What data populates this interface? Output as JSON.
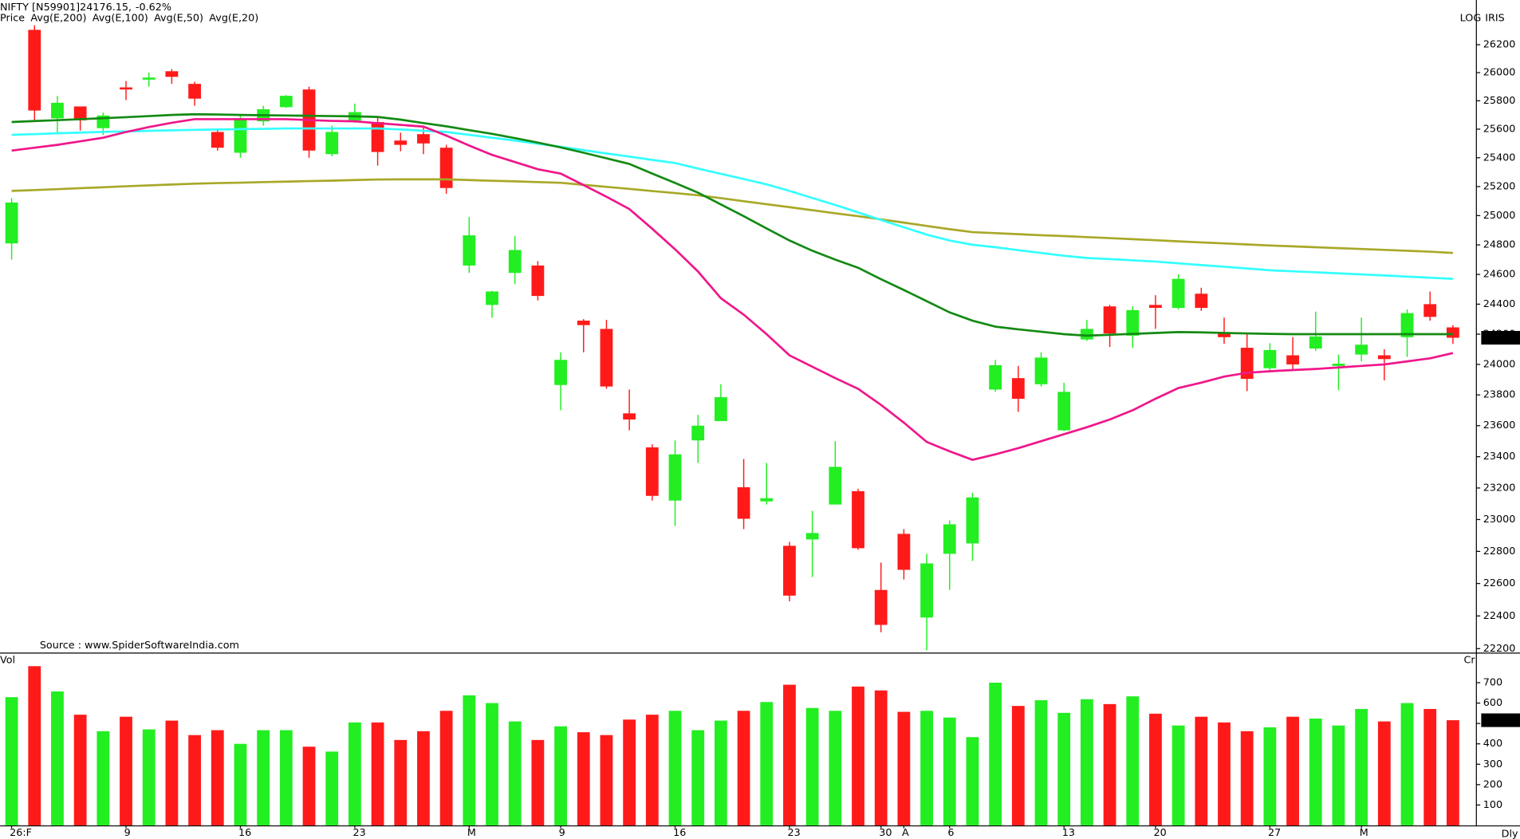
{
  "chart_data": [
    {
      "type": "candlestick",
      "title": "NIFTY [N59901]24176.15,",
      "change": "-0.62%",
      "change_color": "#ff0000",
      "scale_labels": [
        "LOG",
        "IRIS"
      ],
      "source": "Source : www.SpiderSoftwareIndia.com",
      "log_scale": true,
      "name": "Price",
      "name_color": "#22cc22",
      "up_color": "#22ee22",
      "down_color": "#ff1a1a",
      "categories": [
        "26:F",
        null,
        null,
        null,
        null,
        "9",
        null,
        null,
        null,
        null,
        "16",
        null,
        null,
        null,
        null,
        "23",
        null,
        null,
        null,
        null,
        "M",
        null,
        null,
        null,
        "9",
        null,
        null,
        null,
        null,
        "16",
        null,
        null,
        null,
        null,
        "23",
        null,
        null,
        null,
        "30",
        "A",
        null,
        "6",
        null,
        null,
        null,
        null,
        "13",
        null,
        null,
        null,
        "20",
        null,
        null,
        null,
        null,
        "27",
        null,
        null,
        null,
        "M",
        null,
        null,
        null,
        null
      ],
      "open": [
        24810,
        26307,
        25676,
        25760,
        25607,
        25895,
        25950,
        26010,
        25920,
        25580,
        25435,
        25655,
        25755,
        25880,
        25425,
        25660,
        25650,
        25520,
        25565,
        25470,
        24660,
        24395,
        24610,
        24660,
        23865,
        24290,
        24235,
        23680,
        23460,
        23120,
        23505,
        23630,
        23205,
        23115,
        22835,
        22875,
        23095,
        23180,
        22560,
        22910,
        22390,
        22785,
        22850,
        23835,
        23910,
        23870,
        23570,
        24165,
        24385,
        24190,
        24395,
        24375,
        24470,
        24210,
        24110,
        23975,
        24060,
        24105,
        23990,
        24065,
        24060,
        24180,
        24400,
        24245
      ],
      "high": [
        25120,
        26340,
        25834,
        25760,
        25717,
        25940,
        26000,
        26025,
        25935,
        25595,
        25700,
        25765,
        25840,
        25900,
        25625,
        25780,
        25685,
        25575,
        25625,
        25490,
        24990,
        24490,
        24860,
        24690,
        24080,
        24300,
        24295,
        23835,
        23480,
        23505,
        23670,
        23870,
        23385,
        23360,
        22860,
        23055,
        23500,
        23195,
        22730,
        22940,
        22785,
        22995,
        23170,
        24030,
        23990,
        24080,
        23880,
        24295,
        24395,
        24385,
        24460,
        24600,
        24510,
        24310,
        24200,
        24140,
        24180,
        24350,
        24065,
        24310,
        24100,
        24365,
        24485,
        24260
      ],
      "low": [
        24700,
        25662,
        25573,
        25590,
        25560,
        25805,
        25900,
        25920,
        25765,
        25450,
        25400,
        25625,
        25750,
        25400,
        25410,
        25645,
        25345,
        25445,
        25425,
        25150,
        24610,
        24310,
        24535,
        24425,
        23700,
        24080,
        23840,
        23570,
        23120,
        22960,
        23360,
        23630,
        22940,
        23095,
        22490,
        22640,
        23095,
        22810,
        22300,
        22625,
        22190,
        22560,
        22740,
        23820,
        23690,
        23855,
        23565,
        24155,
        24115,
        24110,
        24235,
        24365,
        24355,
        24135,
        23825,
        23950,
        23960,
        24090,
        23830,
        24020,
        23895,
        24050,
        24290,
        24135
      ],
      "close": [
        25090,
        25731,
        25786,
        25662,
        25696,
        25880,
        25965,
        25970,
        25815,
        25470,
        25676,
        25740,
        25835,
        25450,
        25580,
        25720,
        25440,
        25490,
        25500,
        25190,
        24865,
        24485,
        24765,
        24455,
        24030,
        24260,
        23855,
        23640,
        23150,
        23415,
        23600,
        23785,
        23005,
        23135,
        22525,
        22915,
        23335,
        22820,
        22345,
        22685,
        22725,
        22970,
        23140,
        23995,
        23775,
        24045,
        23820,
        24235,
        24205,
        24360,
        24375,
        24570,
        24375,
        24180,
        23905,
        24095,
        24000,
        24185,
        24005,
        24130,
        24035,
        24340,
        24315,
        24176.15
      ],
      "series": [
        {
          "name": "Avg(E,200)",
          "color": "#a8a828",
          "values": [
            25170,
            25176,
            25182,
            25189,
            25195,
            25202,
            25208,
            25214,
            25220,
            25224,
            25227,
            25231,
            25234,
            25238,
            25241,
            25245,
            25249,
            25250,
            25250,
            25250,
            25245,
            25240,
            25236,
            25231,
            25226,
            25212,
            25198,
            25184,
            25169,
            25155,
            25140,
            25120,
            25099,
            25078,
            25058,
            25037,
            25016,
            24996,
            24974,
            24952,
            24929,
            24907,
            24887,
            24880,
            24873,
            24866,
            24860,
            24853,
            24846,
            24839,
            24832,
            24824,
            24817,
            24810,
            24803,
            24796,
            24790,
            24784,
            24778,
            24772,
            24766,
            24760,
            24754,
            24745
          ]
        },
        {
          "name": "Avg(E,100)",
          "color": "#33ffff",
          "values": [
            25560,
            25565,
            25571,
            25576,
            25581,
            25584,
            25588,
            25592,
            25595,
            25598,
            25600,
            25602,
            25605,
            25605,
            25605,
            25605,
            25605,
            25598,
            25589,
            25580,
            25560,
            25540,
            25520,
            25498,
            25476,
            25453,
            25430,
            25408,
            25385,
            25363,
            25325,
            25288,
            25252,
            25215,
            25170,
            25121,
            25073,
            25022,
            24970,
            24920,
            24870,
            24830,
            24801,
            24784,
            24764,
            24745,
            24726,
            24711,
            24704,
            24695,
            24687,
            24675,
            24663,
            24652,
            24640,
            24628,
            24621,
            24614,
            24607,
            24600,
            24593,
            24585,
            24578,
            24570
          ]
        },
        {
          "name": "Avg(E,50)",
          "color": "#138a13",
          "values": [
            25650,
            25657,
            25663,
            25670,
            25677,
            25684,
            25692,
            25700,
            25705,
            25703,
            25700,
            25698,
            25696,
            25694,
            25692,
            25690,
            25686,
            25667,
            25643,
            25620,
            25593,
            25567,
            25537,
            25506,
            25472,
            25435,
            25396,
            25357,
            25290,
            25225,
            25158,
            25077,
            24996,
            24912,
            24830,
            24760,
            24700,
            24645,
            24568,
            24495,
            24420,
            24345,
            24290,
            24250,
            24232,
            24216,
            24200,
            24190,
            24196,
            24202,
            24208,
            24214,
            24212,
            24208,
            24205,
            24202,
            24200,
            24200,
            24200,
            24200,
            24200,
            24200,
            24200,
            24200
          ]
        },
        {
          "name": "Avg(E,20)",
          "color": "#f0168a",
          "values": [
            25450,
            25470,
            25490,
            25515,
            25540,
            25580,
            25615,
            25645,
            25670,
            25670,
            25670,
            25670,
            25670,
            25664,
            25658,
            25655,
            25642,
            25630,
            25618,
            25555,
            25485,
            25420,
            25370,
            25320,
            25290,
            25210,
            25130,
            25045,
            24910,
            24770,
            24620,
            24440,
            24330,
            24200,
            24060,
            23985,
            23910,
            23840,
            23735,
            23620,
            23495,
            23435,
            23380,
            23415,
            23455,
            23500,
            23545,
            23590,
            23640,
            23700,
            23775,
            23845,
            23880,
            23920,
            23945,
            23955,
            23963,
            23970,
            23980,
            23990,
            24000,
            24020,
            24040,
            24075
          ]
        }
      ],
      "ylim": [
        22176,
        26495
      ],
      "yticks": [
        22200,
        22400,
        22600,
        22800,
        23000,
        23200,
        23400,
        23600,
        23800,
        24000,
        24200,
        24400,
        24600,
        24800,
        25000,
        25200,
        25400,
        25600,
        25800,
        26000,
        26200
      ]
    },
    {
      "type": "bar",
      "label": "Vol",
      "label_color": "#22cc22",
      "unit": "Cr",
      "frequency": "Dly",
      "values": [
        629,
        781,
        657,
        543,
        462,
        533,
        471,
        514,
        443,
        467,
        400,
        467,
        467,
        386,
        362,
        505,
        505,
        419,
        462,
        562,
        638,
        600,
        510,
        419,
        486,
        457,
        443,
        519,
        543,
        562,
        467,
        514,
        562,
        605,
        690,
        576,
        562,
        681,
        662,
        557,
        562,
        529,
        433,
        700,
        586,
        614,
        552,
        619,
        595,
        633,
        548,
        490,
        533,
        505,
        462,
        481,
        533,
        524,
        490,
        571,
        510,
        600,
        571,
        515.91
      ],
      "ylim": [
        0,
        843
      ],
      "yticks": [
        100,
        200,
        300,
        400,
        500,
        600,
        700
      ]
    }
  ]
}
